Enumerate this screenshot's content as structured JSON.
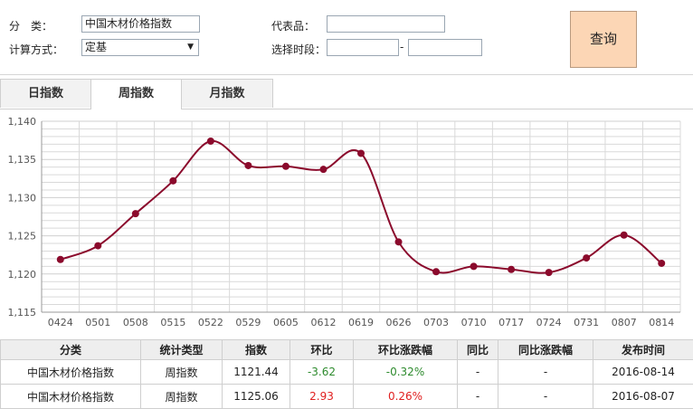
{
  "filter": {
    "category_label": "分　类：",
    "category_value": "中国木材价格指数",
    "method_label": "计算方式：",
    "method_value": "定基",
    "method_arrow_icon": "triangle-down",
    "product_label": "代表品：",
    "product_value": "",
    "period_label": "选择时段：",
    "period_start": "",
    "period_sep": "-",
    "period_end": "",
    "query_label": "查询"
  },
  "tabs": [
    {
      "label": "日指数",
      "active": false
    },
    {
      "label": "周指数",
      "active": true
    },
    {
      "label": "月指数",
      "active": false
    }
  ],
  "chart_data": {
    "type": "line",
    "x": [
      "0424",
      "0501",
      "0508",
      "0515",
      "0522",
      "0529",
      "0605",
      "0612",
      "0619",
      "0626",
      "0703",
      "0710",
      "0717",
      "0724",
      "0731",
      "0807",
      "0814"
    ],
    "series": [
      {
        "values": [
          1121.9,
          1123.7,
          1127.9,
          1132.2,
          1137.4,
          1134.2,
          1134.1,
          1133.7,
          1135.8,
          1124.2,
          1120.3,
          1121.0,
          1120.6,
          1120.2,
          1122.1,
          1125.1,
          1121.4
        ]
      }
    ],
    "yticks": [
      "1,115",
      "1,120",
      "1,125",
      "1,130",
      "1,135",
      "1,140"
    ],
    "ylim": [
      1115,
      1140
    ],
    "grid": true,
    "colors": {
      "line": "#8b0a2c",
      "grid": "#d9d9d9",
      "axis": "#999999"
    }
  },
  "table": {
    "headers": [
      "分类",
      "统计类型",
      "指数",
      "环比",
      "环比涨跌幅",
      "同比",
      "同比涨跌幅",
      "发布时间"
    ],
    "rows": [
      {
        "cat": "中国木材价格指数",
        "type": "周指数",
        "index": "1121.44",
        "mom": "-3.62",
        "mom_pct": "-0.32%",
        "yoy": "-",
        "yoy_pct": "-",
        "date": "2016-08-14"
      },
      {
        "cat": "中国木材价格指数",
        "type": "周指数",
        "index": "1125.06",
        "mom": "2.93",
        "mom_pct": "0.26%",
        "yoy": "-",
        "yoy_pct": "-",
        "date": "2016-08-07"
      }
    ],
    "colors": {
      "negative": "#2e8b2e",
      "positive": "#e02020"
    }
  }
}
